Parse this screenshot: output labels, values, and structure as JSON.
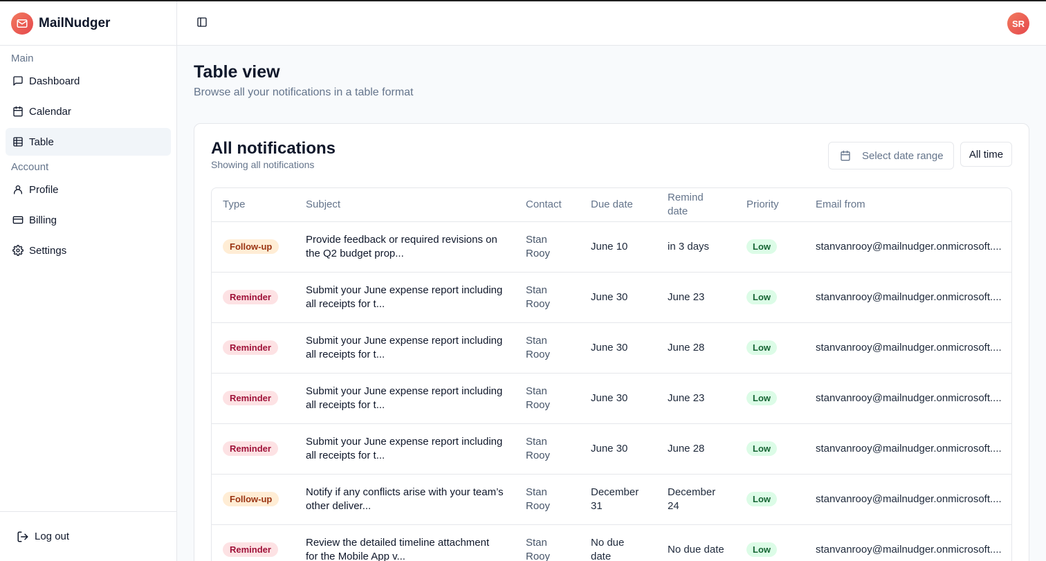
{
  "app": {
    "name": "MailNudger",
    "avatar_initials": "SR"
  },
  "sidebar": {
    "sections": [
      {
        "label": "Main",
        "items": [
          {
            "label": "Dashboard",
            "icon": "message-square-icon"
          },
          {
            "label": "Calendar",
            "icon": "calendar-icon"
          },
          {
            "label": "Table",
            "icon": "table-icon",
            "active": true
          }
        ]
      },
      {
        "label": "Account",
        "items": [
          {
            "label": "Profile",
            "icon": "user-icon"
          },
          {
            "label": "Billing",
            "icon": "credit-card-icon"
          },
          {
            "label": "Settings",
            "icon": "gear-icon"
          }
        ]
      }
    ],
    "logout_label": "Log out"
  },
  "page": {
    "title": "Table view",
    "subtitle": "Browse all your notifications in a table format"
  },
  "card": {
    "title": "All notifications",
    "subtitle": "Showing all notifications",
    "date_range_placeholder": "Select date range",
    "all_time_label": "All time"
  },
  "table": {
    "headers": [
      "Type",
      "Subject",
      "Contact",
      "Due date",
      "Remind date",
      "Priority",
      "Email from"
    ],
    "rows": [
      {
        "type": "Follow-up",
        "subject": "Provide feedback or required revisions on the Q2 budget prop...",
        "contact": "Stan Rooy",
        "due": "June 10",
        "remind": "in 3 days",
        "priority": "Low",
        "email": "stanvanrooy@mailnudger.onmicrosoft...."
      },
      {
        "type": "Reminder",
        "subject": "Submit your June expense report including all receipts for t...",
        "contact": "Stan Rooy",
        "due": "June 30",
        "remind": "June 23",
        "priority": "Low",
        "email": "stanvanrooy@mailnudger.onmicrosoft...."
      },
      {
        "type": "Reminder",
        "subject": "Submit your June expense report including all receipts for t...",
        "contact": "Stan Rooy",
        "due": "June 30",
        "remind": "June 28",
        "priority": "Low",
        "email": "stanvanrooy@mailnudger.onmicrosoft...."
      },
      {
        "type": "Reminder",
        "subject": "Submit your June expense report including all receipts for t...",
        "contact": "Stan Rooy",
        "due": "June 30",
        "remind": "June 23",
        "priority": "Low",
        "email": "stanvanrooy@mailnudger.onmicrosoft...."
      },
      {
        "type": "Reminder",
        "subject": "Submit your June expense report including all receipts for t...",
        "contact": "Stan Rooy",
        "due": "June 30",
        "remind": "June 28",
        "priority": "Low",
        "email": "stanvanrooy@mailnudger.onmicrosoft...."
      },
      {
        "type": "Follow-up",
        "subject": "Notify if any conflicts arise with your team’s other deliver...",
        "contact": "Stan Rooy",
        "due": "December 31",
        "remind": "December 24",
        "priority": "Low",
        "email": "stanvanrooy@mailnudger.onmicrosoft...."
      },
      {
        "type": "Reminder",
        "subject": "Review the detailed timeline attachment for the Mobile App v...",
        "contact": "Stan Rooy",
        "due": "No due date",
        "remind": "No due date",
        "priority": "Low",
        "email": "stanvanrooy@mailnudger.onmicrosoft...."
      }
    ]
  }
}
